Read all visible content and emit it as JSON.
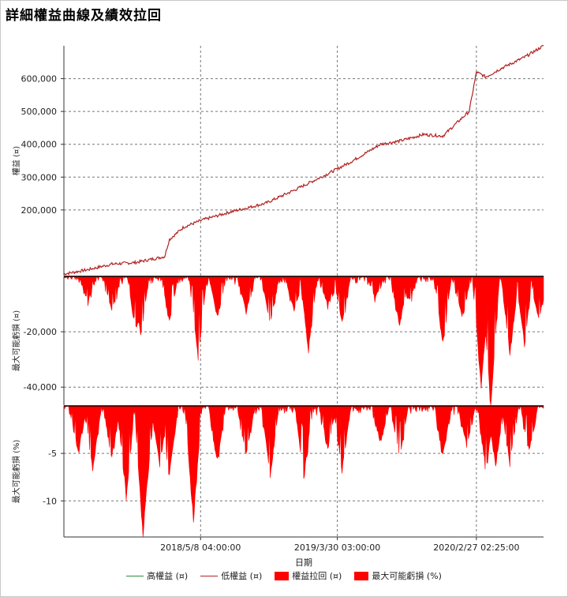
{
  "title": "詳細權益曲線及績效拉回",
  "colors": {
    "high_equity": "#2e8b3a",
    "low_equity": "#b22222",
    "drawdown": "#ff0000"
  },
  "chart_data": [
    {
      "type": "line",
      "ylabel": "權益 (¤)",
      "y_ticks": [
        200000,
        300000,
        400000,
        500000,
        600000
      ],
      "y_tick_labels": [
        "200,000",
        "300,000",
        "400,000",
        "500,000",
        "600,000"
      ],
      "ylim": [
        0,
        700000
      ],
      "series": [
        {
          "name": "低權益 (¤)",
          "anchors": [
            [
              0,
              5000
            ],
            [
              0.05,
              18000
            ],
            [
              0.1,
              35000
            ],
            [
              0.15,
              40000
            ],
            [
              0.21,
              58000
            ],
            [
              0.22,
              110000
            ],
            [
              0.25,
              148000
            ],
            [
              0.29,
              170000
            ],
            [
              0.35,
              195000
            ],
            [
              0.42,
              220000
            ],
            [
              0.48,
              260000
            ],
            [
              0.55,
              310000
            ],
            [
              0.6,
              348000
            ],
            [
              0.66,
              400000
            ],
            [
              0.7,
              410000
            ],
            [
              0.75,
              430000
            ],
            [
              0.79,
              425000
            ],
            [
              0.83,
              480000
            ],
            [
              0.845,
              500000
            ],
            [
              0.86,
              620000
            ],
            [
              0.88,
              605000
            ],
            [
              0.91,
              630000
            ],
            [
              0.96,
              665000
            ],
            [
              1.0,
              700000
            ]
          ]
        }
      ]
    },
    {
      "type": "area",
      "ylabel": "最大可能虧損 (¤)",
      "y_ticks": [
        -20000,
        -40000
      ],
      "y_tick_labels": [
        "-20,000",
        "-40,000"
      ],
      "ylim": [
        -46500,
        0
      ],
      "series": [
        {
          "name": "權益拉回 (¤)",
          "troughs": [
            [
              0.05,
              -8000
            ],
            [
              0.1,
              -12000
            ],
            [
              0.15,
              -18000
            ],
            [
              0.16,
              -20000
            ],
            [
              0.22,
              -15000
            ],
            [
              0.28,
              -29000
            ],
            [
              0.32,
              -14000
            ],
            [
              0.38,
              -12000
            ],
            [
              0.43,
              -17000
            ],
            [
              0.48,
              -12000
            ],
            [
              0.51,
              -25000
            ],
            [
              0.55,
              -10000
            ],
            [
              0.58,
              -16000
            ],
            [
              0.65,
              -7000
            ],
            [
              0.7,
              -17000
            ],
            [
              0.72,
              -8000
            ],
            [
              0.79,
              -23000
            ],
            [
              0.83,
              -14000
            ],
            [
              0.87,
              -39000
            ],
            [
              0.89,
              -46000
            ],
            [
              0.93,
              -27000
            ],
            [
              0.96,
              -23000
            ],
            [
              0.99,
              -15000
            ]
          ]
        }
      ]
    },
    {
      "type": "area",
      "ylabel": "最大可能虧損 (%)",
      "y_ticks": [
        -5,
        -10
      ],
      "y_tick_labels": [
        "-5",
        "-10"
      ],
      "ylim": [
        -13.8,
        0
      ],
      "series": [
        {
          "name": "最大可能虧損 (%)",
          "troughs": [
            [
              0.03,
              -4.5
            ],
            [
              0.06,
              -6.5
            ],
            [
              0.1,
              -5.0
            ],
            [
              0.13,
              -9.0
            ],
            [
              0.17,
              -10.0
            ],
            [
              0.165,
              -13.5
            ],
            [
              0.2,
              -6.0
            ],
            [
              0.22,
              -7.0
            ],
            [
              0.27,
              -11.5
            ],
            [
              0.32,
              -5.5
            ],
            [
              0.38,
              -5.0
            ],
            [
              0.43,
              -7.0
            ],
            [
              0.5,
              -7.5
            ],
            [
              0.55,
              -4.0
            ],
            [
              0.58,
              -6.5
            ],
            [
              0.66,
              -3.5
            ],
            [
              0.7,
              -5.5
            ],
            [
              0.79,
              -5.0
            ],
            [
              0.84,
              -4.0
            ],
            [
              0.88,
              -6.5
            ],
            [
              0.9,
              -6.0
            ],
            [
              0.93,
              -5.5
            ],
            [
              0.97,
              -4.5
            ]
          ]
        }
      ]
    }
  ],
  "x_axis": {
    "label": "日期",
    "ticks": [
      {
        "pos": 0.285,
        "label": "2018/5/8 04:00:00"
      },
      {
        "pos": 0.57,
        "label": "2019/3/30 03:00:00"
      },
      {
        "pos": 0.86,
        "label": "2020/2/27 02:25:00"
      }
    ]
  },
  "legend": [
    {
      "key": "high_equity",
      "label": "高權益 (¤)",
      "shape": "line"
    },
    {
      "key": "low_equity",
      "label": "低權益 (¤)",
      "shape": "line"
    },
    {
      "key": "drawdown",
      "label": "權益拉回 (¤)",
      "shape": "box"
    },
    {
      "key": "drawdown",
      "label": "最大可能虧損 (%)",
      "shape": "box"
    }
  ]
}
